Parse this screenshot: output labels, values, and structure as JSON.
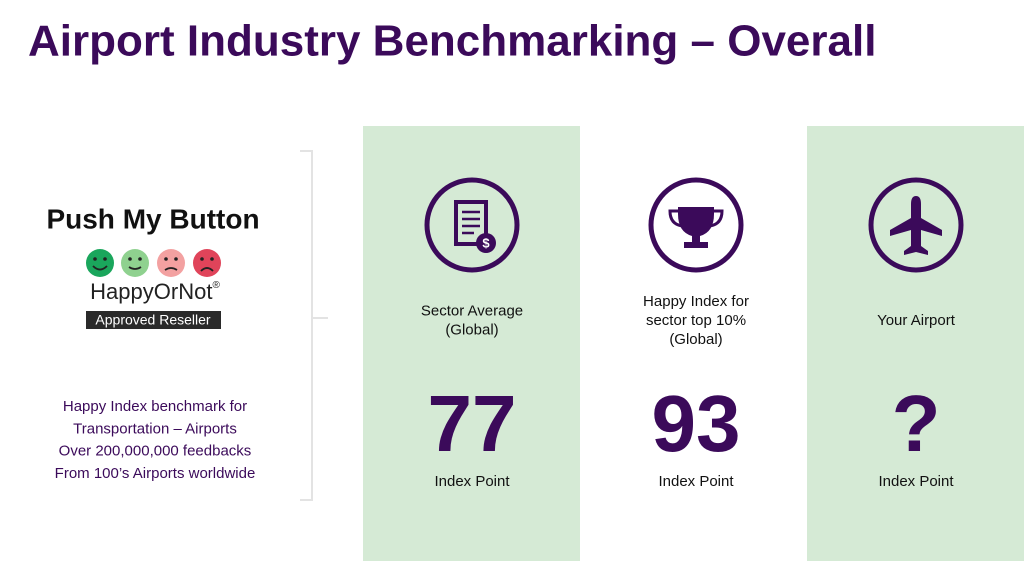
{
  "title": "Airport Industry Benchmarking – Overall",
  "logo": {
    "name": "Push My Button",
    "brand": "HappyOrNot",
    "brand_mark": "®",
    "badge": "Approved Reseller"
  },
  "description": [
    "Happy Index benchmark for",
    "Transportation – Airports",
    "Over 200,000,000 feedbacks",
    "From 100’s Airports worldwide"
  ],
  "columns": [
    {
      "label": [
        "Sector Average",
        "(Global)"
      ],
      "value": 77,
      "unit": "Index Point"
    },
    {
      "label": [
        "Happy Index for",
        "sector top 10%",
        "(Global)"
      ],
      "value": 93,
      "unit": "Index Point"
    },
    {
      "label": [
        "Your Airport"
      ],
      "value": "?",
      "unit": "Index Point"
    }
  ]
}
